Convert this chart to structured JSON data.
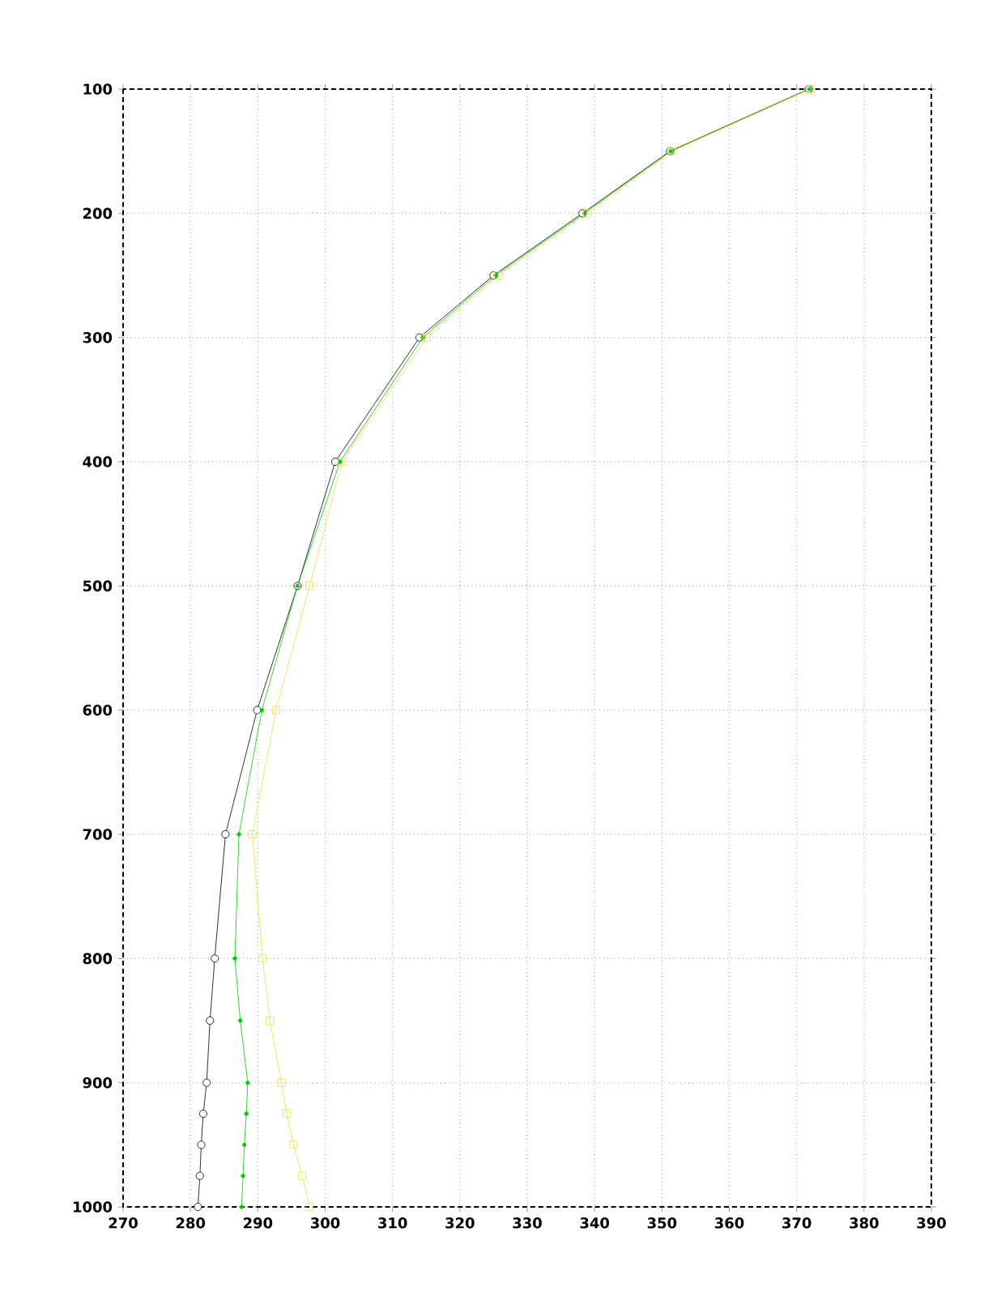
{
  "chart_data": {
    "type": "line",
    "xlim": [
      270,
      390
    ],
    "xticks": [
      270,
      280,
      290,
      300,
      310,
      320,
      330,
      340,
      350,
      360,
      370,
      380,
      390
    ],
    "ylim": [
      1000,
      100
    ],
    "yticks": [
      100,
      200,
      300,
      400,
      500,
      600,
      700,
      800,
      900,
      1000
    ],
    "grid": true,
    "line_style": "solid",
    "series": [
      {
        "color": "#000000",
        "marker": "circle",
        "x": [
          371.8,
          351.2,
          338.2,
          325.0,
          314.0,
          301.5,
          295.9,
          289.9,
          285.2,
          283.6,
          282.9,
          282.4,
          281.9,
          281.6,
          281.4,
          281.1
        ],
        "values": [
          100,
          150,
          200,
          250,
          300,
          400,
          500,
          600,
          700,
          800,
          850,
          900,
          925,
          950,
          975,
          1000
        ]
      },
      {
        "color": "#00cc00",
        "marker": "filled_circle",
        "x": [
          371.9,
          351.3,
          338.5,
          325.3,
          314.5,
          302.2,
          295.9,
          290.6,
          287.2,
          286.6,
          287.4,
          288.5,
          288.3,
          288.0,
          287.8,
          287.6
        ],
        "values": [
          100,
          150,
          200,
          250,
          300,
          400,
          500,
          600,
          700,
          800,
          850,
          900,
          925,
          950,
          975,
          1000
        ]
      },
      {
        "color": "#e8e040",
        "marker": "square",
        "x": [
          372.0,
          351.5,
          338.9,
          325.7,
          315.1,
          302.5,
          297.7,
          292.7,
          289.2,
          290.7,
          291.8,
          293.5,
          294.3,
          295.3,
          296.6,
          297.7
        ],
        "values": [
          100,
          150,
          200,
          250,
          300,
          400,
          500,
          600,
          700,
          800,
          850,
          900,
          925,
          950,
          975,
          1000
        ]
      }
    ]
  }
}
